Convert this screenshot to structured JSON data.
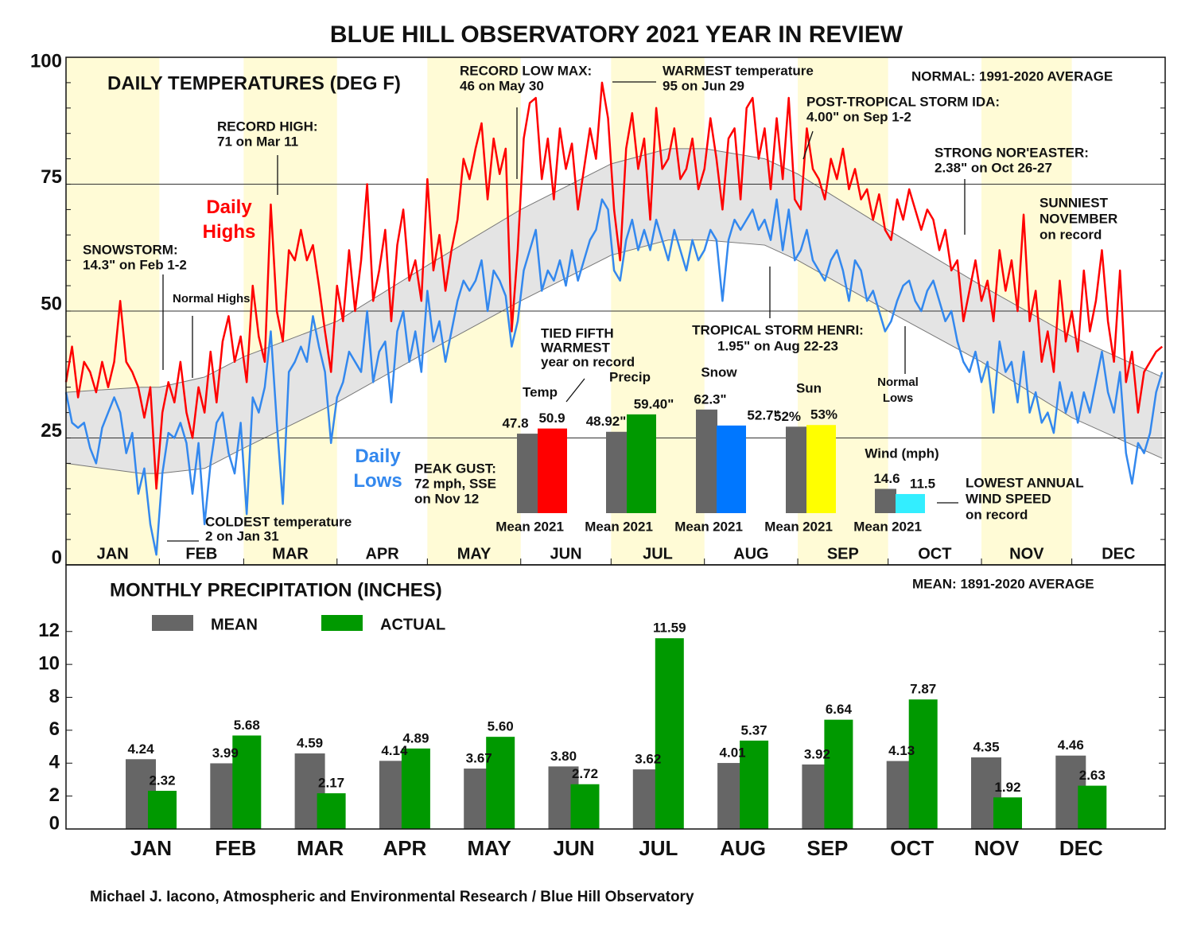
{
  "title": "BLUE HILL OBSERVATORY 2021 YEAR IN REVIEW",
  "credit": "Michael J. Iacono, Atmospheric and Environmental Research / Blue Hill Observatory",
  "chart_data": [
    {
      "type": "line",
      "title": "DAILY TEMPERATURES (DEG F)",
      "note": "NORMAL: 1991-2020 AVERAGE",
      "months": [
        "JAN",
        "FEB",
        "MAR",
        "APR",
        "MAY",
        "JUN",
        "JUL",
        "AUG",
        "SEP",
        "OCT",
        "NOV",
        "DEC"
      ],
      "xlim": [
        0,
        365
      ],
      "ylim": [
        0,
        100
      ],
      "yticks": [
        0,
        25,
        50,
        75,
        100
      ],
      "grid": true,
      "x": [
        0,
        2,
        4,
        6,
        8,
        10,
        12,
        14,
        16,
        18,
        20,
        22,
        24,
        26,
        28,
        30,
        32,
        34,
        36,
        38,
        40,
        42,
        44,
        46,
        48,
        50,
        52,
        54,
        56,
        58,
        60,
        62,
        64,
        66,
        68,
        70,
        72,
        74,
        76,
        78,
        80,
        82,
        84,
        86,
        88,
        90,
        92,
        94,
        96,
        98,
        100,
        102,
        104,
        106,
        108,
        110,
        112,
        114,
        116,
        118,
        120,
        122,
        124,
        126,
        128,
        130,
        132,
        134,
        136,
        138,
        140,
        142,
        144,
        146,
        148,
        150,
        152,
        154,
        156,
        158,
        160,
        162,
        164,
        166,
        168,
        170,
        172,
        174,
        176,
        178,
        180,
        182,
        184,
        186,
        188,
        190,
        192,
        194,
        196,
        198,
        200,
        202,
        204,
        206,
        208,
        210,
        212,
        214,
        216,
        218,
        220,
        222,
        224,
        226,
        228,
        230,
        232,
        234,
        236,
        238,
        240,
        242,
        244,
        246,
        248,
        250,
        252,
        254,
        256,
        258,
        260,
        262,
        264,
        266,
        268,
        270,
        272,
        274,
        276,
        278,
        280,
        282,
        284,
        286,
        288,
        290,
        292,
        294,
        296,
        298,
        300,
        302,
        304,
        306,
        308,
        310,
        312,
        314,
        316,
        318,
        320,
        322,
        324,
        326,
        328,
        330,
        332,
        334,
        336,
        338,
        340,
        342,
        344,
        346,
        348,
        350,
        352,
        354,
        356,
        358,
        360,
        362,
        364
      ],
      "series": [
        {
          "name": "Daily Highs",
          "color": "#ff0000",
          "values": [
            36,
            43,
            33,
            40,
            38,
            34,
            40,
            35,
            40,
            52,
            40,
            38,
            35,
            29,
            35,
            15,
            30,
            36,
            32,
            40,
            30,
            25,
            35,
            30,
            42,
            32,
            44,
            49,
            40,
            45,
            36,
            55,
            45,
            40,
            71,
            50,
            44,
            62,
            60,
            66,
            60,
            63,
            55,
            46,
            38,
            55,
            48,
            62,
            50,
            60,
            75,
            52,
            58,
            66,
            48,
            63,
            70,
            56,
            60,
            52,
            76,
            58,
            65,
            54,
            62,
            68,
            80,
            76,
            82,
            87,
            72,
            84,
            77,
            82,
            46,
            62,
            84,
            91,
            92,
            76,
            84,
            72,
            86,
            78,
            83,
            70,
            78,
            86,
            80,
            95,
            88,
            70,
            60,
            82,
            89,
            78,
            84,
            68,
            90,
            78,
            80,
            86,
            76,
            78,
            84,
            74,
            78,
            88,
            80,
            70,
            84,
            86,
            72,
            90,
            92,
            80,
            86,
            74,
            88,
            76,
            92,
            72,
            70,
            86,
            78,
            76,
            72,
            80,
            76,
            82,
            74,
            78,
            72,
            74,
            68,
            73,
            66,
            64,
            72,
            68,
            74,
            70,
            66,
            70,
            68,
            62,
            66,
            58,
            60,
            48,
            54,
            60,
            52,
            56,
            48,
            62,
            54,
            60,
            50,
            69,
            48,
            54,
            40,
            46,
            38,
            56,
            44,
            50,
            42,
            58,
            46,
            52,
            62,
            48,
            40,
            58,
            36,
            42,
            30,
            38,
            40,
            42,
            43
          ]
        },
        {
          "name": "Daily Lows",
          "color": "#3388ee",
          "values": [
            34,
            28,
            27,
            28,
            23,
            20,
            27,
            30,
            33,
            30,
            22,
            26,
            14,
            19,
            8,
            2,
            18,
            26,
            25,
            28,
            24,
            14,
            24,
            8,
            20,
            28,
            30,
            22,
            18,
            28,
            10,
            33,
            30,
            35,
            46,
            28,
            12,
            38,
            40,
            43,
            40,
            49,
            43,
            38,
            24,
            33,
            36,
            42,
            40,
            38,
            50,
            36,
            42,
            44,
            32,
            46,
            50,
            40,
            46,
            38,
            54,
            44,
            48,
            40,
            46,
            52,
            56,
            54,
            56,
            60,
            50,
            58,
            56,
            53,
            43,
            48,
            58,
            62,
            66,
            54,
            58,
            56,
            60,
            55,
            62,
            56,
            60,
            64,
            66,
            72,
            70,
            58,
            56,
            64,
            68,
            62,
            66,
            62,
            68,
            64,
            60,
            66,
            62,
            58,
            64,
            60,
            62,
            66,
            64,
            52,
            64,
            68,
            66,
            68,
            70,
            66,
            68,
            64,
            72,
            62,
            70,
            60,
            62,
            66,
            60,
            58,
            56,
            60,
            62,
            58,
            52,
            60,
            58,
            52,
            54,
            50,
            46,
            48,
            52,
            55,
            56,
            52,
            50,
            54,
            56,
            52,
            48,
            50,
            44,
            40,
            38,
            42,
            36,
            40,
            30,
            44,
            38,
            40,
            32,
            42,
            30,
            34,
            28,
            30,
            26,
            36,
            30,
            34,
            28,
            34,
            30,
            36,
            42,
            34,
            30,
            38,
            22,
            16,
            24,
            22,
            26,
            34,
            38
          ]
        }
      ],
      "normals": {
        "color": "#e4e4e4",
        "x": [
          0,
          25,
          31,
          46,
          59,
          90,
          120,
          151,
          181,
          200,
          212,
          232,
          243,
          273,
          304,
          334,
          364
        ],
        "series": [
          {
            "name": "Normal Highs",
            "values": [
              34,
              35,
              35,
              37,
              41,
              48,
              59,
              70,
              79,
              82,
              82,
              80,
              77,
              66,
              55,
              45,
              37
            ]
          },
          {
            "name": "Normal Lows",
            "values": [
              20,
              18,
              18,
              19,
              23,
              32,
              42,
              52,
              61,
              64,
              64,
              63,
              60,
              50,
              40,
              29,
              21
            ]
          }
        ]
      },
      "annotations": [
        [
          "RECORD HIGH:",
          "71 on Mar 11"
        ],
        [
          "SNOWSTORM:",
          "14.3\" on Feb 1-2"
        ],
        [
          "COLDEST temperature",
          "2 on Jan 31"
        ],
        [
          "RECORD LOW MAX:",
          "46 on May 30"
        ],
        [
          "WARMEST temperature",
          "95 on Jun 29"
        ],
        [
          "POST-TROPICAL STORM IDA:",
          "4.00\" on Sep 1-2"
        ],
        [
          "STRONG NOR'EASTER:",
          "2.38\" on Oct 26-27"
        ],
        [
          "SUNNIEST",
          "NOVEMBER",
          "on record"
        ],
        [
          "TROPICAL STORM HENRI:",
          "1.95\" on Aug 22-23"
        ],
        [
          "PEAK GUST:",
          "72 mph, SSE",
          "on Nov 12"
        ],
        [
          "LOWEST ANNUAL",
          "WIND SPEED",
          "on record"
        ],
        [
          "TIED FIFTH",
          "WARMEST",
          "year on record"
        ]
      ]
    },
    {
      "type": "bar",
      "categories": [
        "Temp",
        "Precip",
        "Snow",
        "Sun",
        "Wind (mph)"
      ],
      "series": [
        {
          "name": "Mean",
          "color": "#666666",
          "values": [
            47.8,
            48.92,
            62.3,
            52,
            14.6
          ],
          "value_labels": [
            "47.8",
            "48.92\"",
            "62.3\"",
            "52%",
            "14.6"
          ]
        },
        {
          "name": "2021",
          "colors": [
            "#ff0000",
            "#009900",
            "#0077ff",
            "#ffff00",
            "#33eeff"
          ],
          "values": [
            50.9,
            59.4,
            52.7,
            53,
            11.5
          ],
          "value_labels": [
            "50.9",
            "59.40\"",
            "52.7\"",
            "53%",
            "11.5"
          ]
        }
      ]
    },
    {
      "type": "bar",
      "title": "MONTHLY PRECIPITATION (INCHES)",
      "note": "MEAN: 1891-2020 AVERAGE",
      "categories": [
        "JAN",
        "FEB",
        "MAR",
        "APR",
        "MAY",
        "JUN",
        "JUL",
        "AUG",
        "SEP",
        "OCT",
        "NOV",
        "DEC"
      ],
      "ylim": [
        0,
        16
      ],
      "yticks": [
        0,
        2,
        4,
        6,
        8,
        10,
        12
      ],
      "series": [
        {
          "name": "MEAN",
          "color": "#666666",
          "values": [
            4.24,
            3.99,
            4.59,
            4.14,
            3.67,
            3.8,
            3.62,
            4.01,
            3.92,
            4.13,
            4.35,
            4.46
          ],
          "value_labels": [
            "4.24",
            "3.99",
            "4.59",
            "4.14",
            "3.67",
            "3.80",
            "3.62",
            "4.01",
            "3.92",
            "4.13",
            "4.35",
            "4.46"
          ]
        },
        {
          "name": "ACTUAL",
          "color": "#009900",
          "values": [
            2.32,
            5.68,
            2.17,
            4.89,
            5.6,
            2.72,
            11.59,
            5.37,
            6.64,
            7.87,
            1.92,
            2.63
          ],
          "value_labels": [
            "2.32",
            "5.68",
            "2.17",
            "4.89",
            "5.60",
            "2.72",
            "11.59",
            "5.37",
            "6.64",
            "7.87",
            "1.92",
            "2.63"
          ]
        }
      ]
    }
  ]
}
